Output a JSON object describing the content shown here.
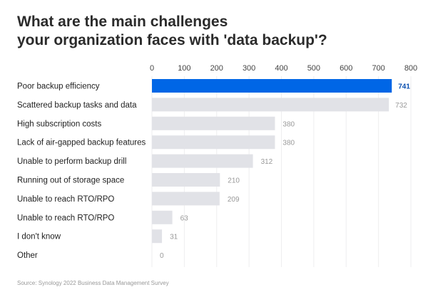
{
  "chart_data": {
    "type": "bar",
    "orientation": "horizontal",
    "title_lines": [
      "What are the main challenges",
      "your organization faces with 'data backup'?"
    ],
    "categories": [
      "Poor backup efficiency",
      "Scattered backup tasks and data",
      "High subscription costs",
      "Lack of air-gapped backup features",
      "Unable to perform backup drill",
      "Running out of storage space",
      "Unable to reach RTO/RPO",
      "Unable to reach RTO/RPO",
      "I don't know",
      "Other"
    ],
    "values": [
      741,
      732,
      380,
      380,
      312,
      210,
      209,
      63,
      31,
      0
    ],
    "xlim": [
      0,
      800
    ],
    "xticks": [
      0,
      100,
      200,
      300,
      400,
      500,
      600,
      700,
      800
    ],
    "axis_position": "top",
    "grid": true,
    "highlight_index": 0,
    "colors": {
      "highlight": "#0066e6",
      "default": "#e1e2e7",
      "highlight_label": "#0a4fb0",
      "label": "#999999",
      "grid": "#eeeeef"
    },
    "source": "Source: Synology 2022 Business Data Management Survey"
  }
}
